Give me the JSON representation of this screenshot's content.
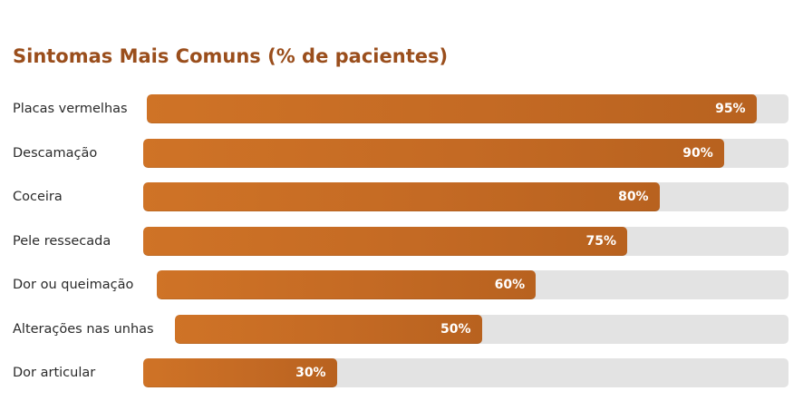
{
  "chart_data": {
    "type": "bar",
    "orientation": "horizontal",
    "title": "Sintomas Mais Comuns (% de pacientes)",
    "categories": [
      "Placas vermelhas",
      "Descamação",
      "Coceira",
      "Pele ressecada",
      "Dor ou queimação",
      "Alterações nas unhas",
      "Dor articular"
    ],
    "values": [
      95,
      90,
      80,
      75,
      60,
      50,
      30
    ],
    "value_labels": [
      "95%",
      "90%",
      "80%",
      "75%",
      "60%",
      "50%",
      "30%"
    ],
    "unit": "%",
    "xlim": [
      0,
      100
    ],
    "colors": {
      "bar": "#c46a24",
      "track": "#e3e3e3",
      "title": "#9a4e1c",
      "value_text": "#ffffff"
    },
    "grid": false,
    "legend": "none"
  }
}
